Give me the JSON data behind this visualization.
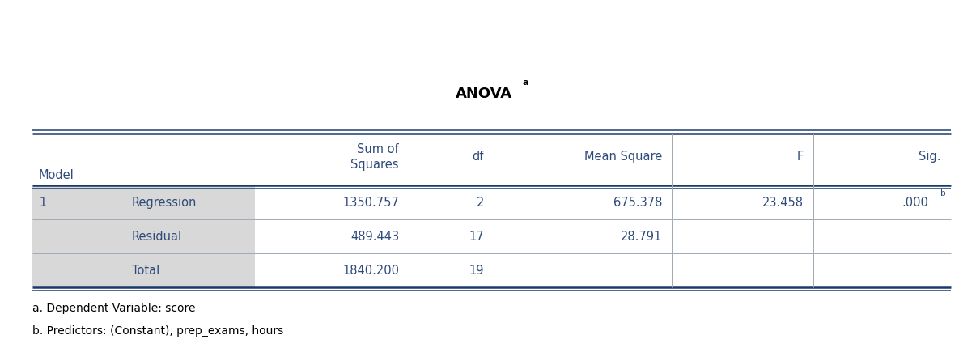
{
  "title": "ANOVA",
  "title_superscript": "a",
  "col_headers": [
    "Model",
    "",
    "Sum of\nSquares",
    "df",
    "Mean Square",
    "F",
    "Sig."
  ],
  "rows": [
    [
      "1",
      "Regression",
      "1350.757",
      "2",
      "675.378",
      "23.458",
      ".000b"
    ],
    [
      "",
      "Residual",
      "489.443",
      "17",
      "28.791",
      "",
      ""
    ],
    [
      "",
      "Total",
      "1840.200",
      "19",
      "",
      "",
      ""
    ]
  ],
  "footnotes": [
    "a. Dependent Variable: score",
    "b. Predictors: (Constant), prep_exams, hours"
  ],
  "text_color": "#2e4a7a",
  "label_bg": "#d8d8d8",
  "border_thick": "#1a3a6b",
  "border_thin": "#a0aab4",
  "font_size": 10.5,
  "title_fontsize": 13,
  "footnote_fontsize": 10,
  "fig_width": 12.06,
  "fig_height": 4.31,
  "dpi": 100
}
